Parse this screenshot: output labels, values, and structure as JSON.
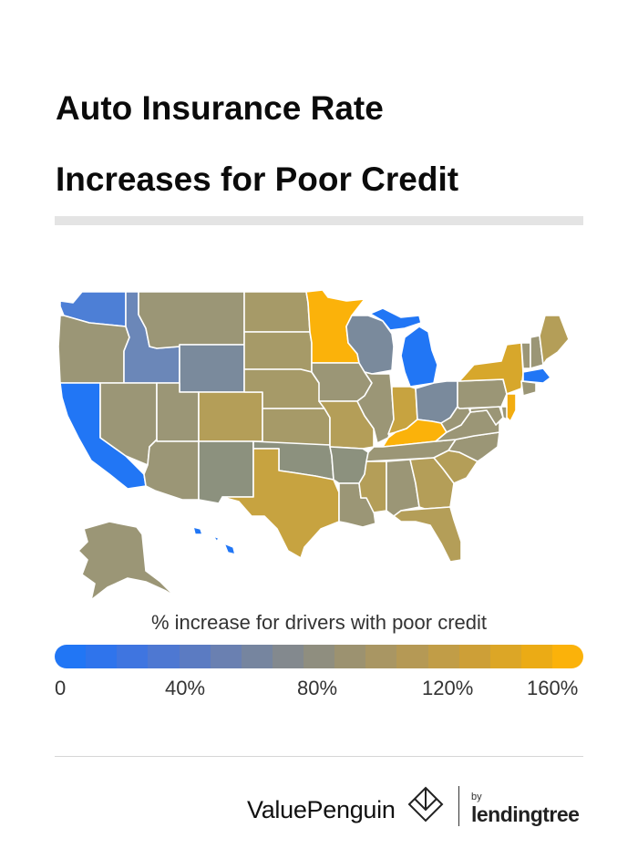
{
  "title": {
    "line1": "Auto Insurance Rate",
    "line2": "Increases for Poor Credit"
  },
  "map": {
    "colors": {
      "blue": "#2176f5",
      "blue_mid": "#4d7fd6",
      "steel": "#6b87b8",
      "slate": "#7a8a9c",
      "gray_green": "#8c917e",
      "olive": "#9b9676",
      "tan": "#b49e58",
      "gold": "#c7a340",
      "amber": "#fbb20a"
    },
    "states": {
      "WA": "#4d7fd6",
      "OR": "#9b9676",
      "CA": "#2176f5",
      "ID": "#6b87b8",
      "NV": "#9b9676",
      "MT": "#9b9676",
      "WY": "#7a8a9c",
      "UT": "#9b9676",
      "AZ": "#9b9676",
      "CO": "#b49e58",
      "NM": "#8c917e",
      "ND": "#a69a68",
      "SD": "#a69a68",
      "NE": "#a69a68",
      "KS": "#a69a68",
      "OK": "#8c917e",
      "TX": "#c7a340",
      "MN": "#fbb20a",
      "IA": "#9b9676",
      "MO": "#b49e58",
      "AR": "#8c917e",
      "LA": "#9b9676",
      "WI": "#7a8a9c",
      "IL": "#9b9676",
      "MI": "#2176f5",
      "IN": "#c7a340",
      "OH": "#7a8a9c",
      "KY": "#fbb20a",
      "TN": "#9b9676",
      "MS": "#b49e58",
      "AL": "#9b9676",
      "GA": "#b49e58",
      "FL": "#b49e58",
      "SC": "#b49e58",
      "NC": "#9b9676",
      "VA": "#9b9676",
      "WV": "#9b9676",
      "PA": "#9b9676",
      "NY": "#d7a72b",
      "VT": "#9b9676",
      "NH": "#9b9676",
      "ME": "#b49e58",
      "MA": "#2176f5",
      "CT": "#9b9676",
      "NJ": "#f2ac10",
      "MD": "#9b9676",
      "DE": "#9b9676",
      "AK": "#9b9676",
      "HI": "#2176f5"
    }
  },
  "legend": {
    "title": "% increase for drivers with poor credit",
    "ticks": [
      "0",
      "40%",
      "80%",
      "120%",
      "160%"
    ],
    "ramp": [
      "#2176f5",
      "#2f74ec",
      "#3f75e0",
      "#4e78d2",
      "#5b7bc2",
      "#6a80b1",
      "#76859f",
      "#83898e",
      "#8f8e7f",
      "#9c9270",
      "#a99663",
      "#b59955",
      "#c19d47",
      "#cd9f37",
      "#dca626",
      "#ebab15",
      "#fbb20a"
    ],
    "min": 0,
    "max": 160
  },
  "footer": {
    "brand": "ValuePenguin",
    "by": "by",
    "partner": "lendingtree"
  }
}
